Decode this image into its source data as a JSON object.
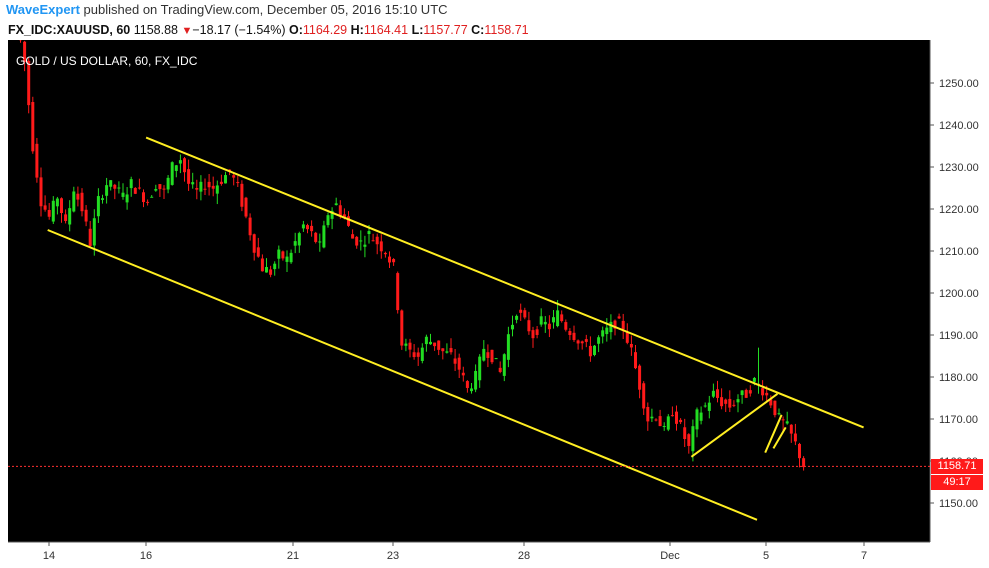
{
  "header": {
    "author": "WaveExpert",
    "published_text": " published on TradingView.com, December 05, 2016 15:10 UTC"
  },
  "quote": {
    "symbol": "FX_IDC:XAUUSD, 60",
    "last": "1158.88",
    "change": "−18.17 (−1.54%)",
    "o_label": "O:",
    "o": "1164.29",
    "h_label": "H:",
    "h": "1164.41",
    "l_label": "L:",
    "l": "1157.77",
    "c_label": "C:",
    "c": "1158.71"
  },
  "colors": {
    "background": "#000000",
    "up": "#22dd22",
    "down": "#ff1a1a",
    "trendline": "#ffee22",
    "accent": "#2196f3"
  },
  "chart_data": {
    "type": "candlestick",
    "title": "GOLD / US DOLLAR, 60, FX_IDC",
    "x_tick_labels": [
      "14",
      "16",
      "21",
      "23",
      "28",
      "Dec",
      "5",
      "7"
    ],
    "y_tick_labels": [
      "1150.00",
      "1160.00",
      "1170.00",
      "1180.00",
      "1190.00",
      "1200.00",
      "1210.00",
      "1220.00",
      "1230.00",
      "1240.00",
      "1250.00"
    ],
    "ylim": [
      1141,
      1261
    ],
    "current_price": "1158.71",
    "countdown": "49:17",
    "grid": false,
    "path_points": [
      [
        0,
        1265
      ],
      [
        2,
        1255
      ],
      [
        4,
        1235
      ],
      [
        6,
        1222
      ],
      [
        8,
        1218
      ],
      [
        10,
        1223
      ],
      [
        12,
        1216
      ],
      [
        14,
        1225
      ],
      [
        16,
        1220
      ],
      [
        18,
        1212
      ],
      [
        20,
        1222
      ],
      [
        22,
        1226
      ],
      [
        24,
        1225
      ],
      [
        26,
        1223
      ],
      [
        28,
        1226
      ],
      [
        30,
        1224
      ],
      [
        32,
        1222
      ],
      [
        34,
        1226
      ],
      [
        36,
        1224
      ],
      [
        38,
        1230
      ],
      [
        40,
        1232
      ],
      [
        42,
        1226
      ],
      [
        44,
        1224
      ],
      [
        46,
        1226
      ],
      [
        48,
        1225
      ],
      [
        50,
        1227
      ],
      [
        52,
        1229
      ],
      [
        54,
        1225
      ],
      [
        56,
        1218
      ],
      [
        58,
        1211
      ],
      [
        60,
        1206
      ],
      [
        62,
        1205
      ],
      [
        64,
        1209
      ],
      [
        66,
        1208
      ],
      [
        68,
        1212
      ],
      [
        70,
        1216
      ],
      [
        72,
        1214
      ],
      [
        74,
        1211
      ],
      [
        76,
        1219
      ],
      [
        78,
        1221
      ],
      [
        80,
        1218
      ],
      [
        82,
        1213
      ],
      [
        84,
        1212
      ],
      [
        86,
        1214
      ],
      [
        88,
        1212
      ],
      [
        90,
        1210
      ],
      [
        92,
        1206
      ],
      [
        94,
        1188
      ],
      [
        96,
        1186
      ],
      [
        98,
        1185
      ],
      [
        100,
        1189
      ],
      [
        102,
        1188
      ],
      [
        104,
        1186
      ],
      [
        106,
        1185
      ],
      [
        108,
        1182
      ],
      [
        110,
        1177
      ],
      [
        112,
        1180
      ],
      [
        114,
        1187
      ],
      [
        116,
        1185
      ],
      [
        118,
        1181
      ],
      [
        120,
        1190
      ],
      [
        122,
        1196
      ],
      [
        124,
        1193
      ],
      [
        126,
        1190
      ],
      [
        128,
        1193
      ],
      [
        130,
        1192
      ],
      [
        132,
        1195
      ],
      [
        134,
        1192
      ],
      [
        136,
        1190
      ],
      [
        138,
        1188
      ],
      [
        140,
        1186
      ],
      [
        142,
        1189
      ],
      [
        144,
        1191
      ],
      [
        146,
        1193
      ],
      [
        148,
        1192
      ],
      [
        150,
        1186
      ],
      [
        152,
        1178
      ],
      [
        154,
        1170
      ],
      [
        156,
        1171
      ],
      [
        158,
        1167
      ],
      [
        160,
        1172
      ],
      [
        162,
        1168
      ],
      [
        164,
        1163
      ],
      [
        166,
        1171
      ],
      [
        168,
        1173
      ],
      [
        170,
        1176
      ],
      [
        172,
        1174
      ],
      [
        174,
        1173
      ],
      [
        176,
        1175
      ],
      [
        178,
        1176
      ],
      [
        180,
        1179
      ],
      [
        182,
        1177
      ],
      [
        184,
        1174
      ],
      [
        186,
        1170
      ],
      [
        188,
        1168
      ],
      [
        190,
        1164
      ],
      [
        192,
        1159
      ]
    ],
    "trendlines": [
      {
        "x1": 31,
        "y1": 1237,
        "x2": 206,
        "y2": 1168
      },
      {
        "x1": 7,
        "y1": 1215,
        "x2": 180,
        "y2": 1146
      },
      {
        "x1": 164,
        "y1": 1161,
        "x2": 185,
        "y2": 1176
      },
      {
        "x1": 182,
        "y1": 1162,
        "x2": 186,
        "y2": 1171
      },
      {
        "x1": 184,
        "y1": 1163,
        "x2": 187,
        "y2": 1168
      }
    ]
  }
}
